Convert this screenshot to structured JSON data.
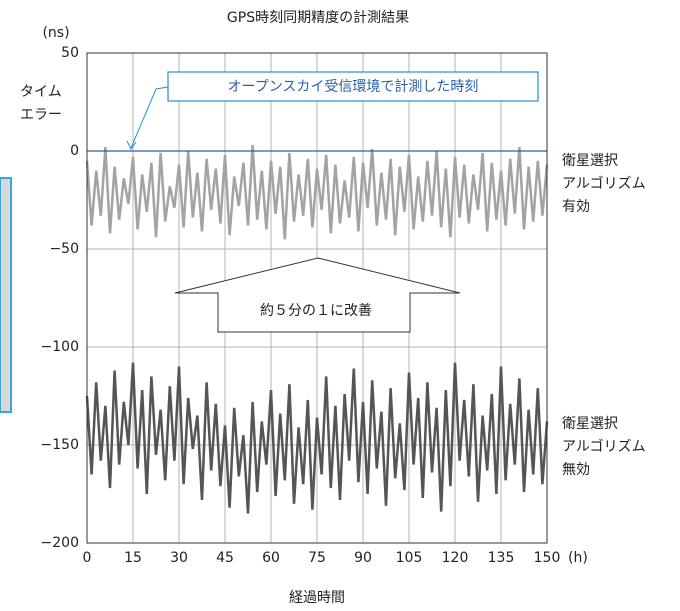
{
  "chart_data": {
    "type": "line",
    "title": "GPS時刻同期精度の計測結果",
    "y_unit": "(ns)",
    "y_label": "タイム\nエラー",
    "x_unit": "(h)",
    "x_label": "経過時間",
    "xlim": [
      0,
      150
    ],
    "xticks": [
      0,
      15,
      30,
      45,
      60,
      75,
      90,
      105,
      120,
      135,
      150
    ],
    "ylim": [
      -200,
      50
    ],
    "yticks": [
      50,
      0,
      -50,
      -100,
      -150,
      -200
    ],
    "grid": true,
    "reference_line": 0,
    "annotations": [
      "オープンスカイ受信環境で計測した時刻",
      "約５分の１に改善"
    ],
    "x": [
      0,
      1.5,
      3,
      4.5,
      6,
      7.5,
      9,
      10.5,
      12,
      13.5,
      15,
      16.5,
      18,
      19.5,
      21,
      22.5,
      24,
      25.5,
      27,
      28.5,
      30,
      31.5,
      33,
      34.5,
      36,
      37.5,
      39,
      40.5,
      42,
      43.5,
      45,
      46.5,
      48,
      49.5,
      51,
      52.5,
      54,
      55.5,
      57,
      58.5,
      60,
      61.5,
      63,
      64.5,
      66,
      67.5,
      69,
      70.5,
      72,
      73.5,
      75,
      76.5,
      78,
      79.5,
      81,
      82.5,
      84,
      85.5,
      87,
      88.5,
      90,
      91.5,
      93,
      94.5,
      96,
      97.5,
      99,
      100.5,
      102,
      103.5,
      105,
      106.5,
      108,
      109.5,
      111,
      112.5,
      114,
      115.5,
      117,
      118.5,
      120,
      121.5,
      123,
      124.5,
      126,
      127.5,
      129,
      130.5,
      132,
      133.5,
      135,
      136.5,
      138,
      139.5,
      141,
      142.5,
      144,
      145.5,
      147,
      148.5,
      150
    ],
    "series": [
      {
        "name": "衛星選択\nアルゴリズム\n有効",
        "color": "#a3a3a3",
        "values": [
          -5,
          -38,
          -10,
          -33,
          2,
          -42,
          -8,
          -35,
          -14,
          -27,
          -3,
          -40,
          -12,
          -31,
          -6,
          -44,
          -1,
          -36,
          -18,
          -29,
          -7,
          -39,
          0,
          -34,
          -11,
          -41,
          -4,
          -30,
          -9,
          -37,
          -2,
          -43,
          -13,
          -28,
          -6,
          -38,
          3,
          -35,
          -10,
          -40,
          -5,
          -32,
          -8,
          -45,
          -1,
          -36,
          -12,
          -33,
          -4,
          -39,
          -9,
          -30,
          -2,
          -42,
          -7,
          -37,
          -15,
          -34,
          -3,
          -41,
          -6,
          -29,
          1,
          -38,
          -11,
          -35,
          -4,
          -43,
          -8,
          -31,
          -2,
          -40,
          -13,
          -36,
          -5,
          -33,
          0,
          -39,
          -9,
          -44,
          -3,
          -34,
          -7,
          -37,
          -12,
          -30,
          -1,
          -41,
          -6,
          -35,
          -10,
          -38,
          -4,
          -32,
          2,
          -40,
          -8,
          -36,
          -5,
          -33,
          -7
        ]
      },
      {
        "name": "衛星選択\nアルゴリズム\n無効",
        "color": "#555555",
        "values": [
          -125,
          -165,
          -118,
          -158,
          -130,
          -172,
          -112,
          -160,
          -128,
          -150,
          -108,
          -162,
          -122,
          -175,
          -115,
          -155,
          -132,
          -168,
          -120,
          -158,
          -110,
          -170,
          -126,
          -152,
          -135,
          -178,
          -118,
          -163,
          -129,
          -171,
          -140,
          -182,
          -131,
          -166,
          -145,
          -185,
          -128,
          -174,
          -138,
          -160,
          -122,
          -176,
          -134,
          -168,
          -119,
          -180,
          -141,
          -170,
          -127,
          -183,
          -136,
          -165,
          -115,
          -172,
          -130,
          -178,
          -124,
          -158,
          -111,
          -169,
          -128,
          -175,
          -117,
          -162,
          -133,
          -181,
          -121,
          -167,
          -139,
          -173,
          -113,
          -160,
          -126,
          -177,
          -118,
          -164,
          -131,
          -184,
          -122,
          -171,
          -108,
          -158,
          -127,
          -166,
          -119,
          -179,
          -135,
          -163,
          -124,
          -175,
          -110,
          -168,
          -129,
          -160,
          -116,
          -174,
          -132,
          -165,
          -121,
          -170,
          -138
        ]
      }
    ]
  }
}
